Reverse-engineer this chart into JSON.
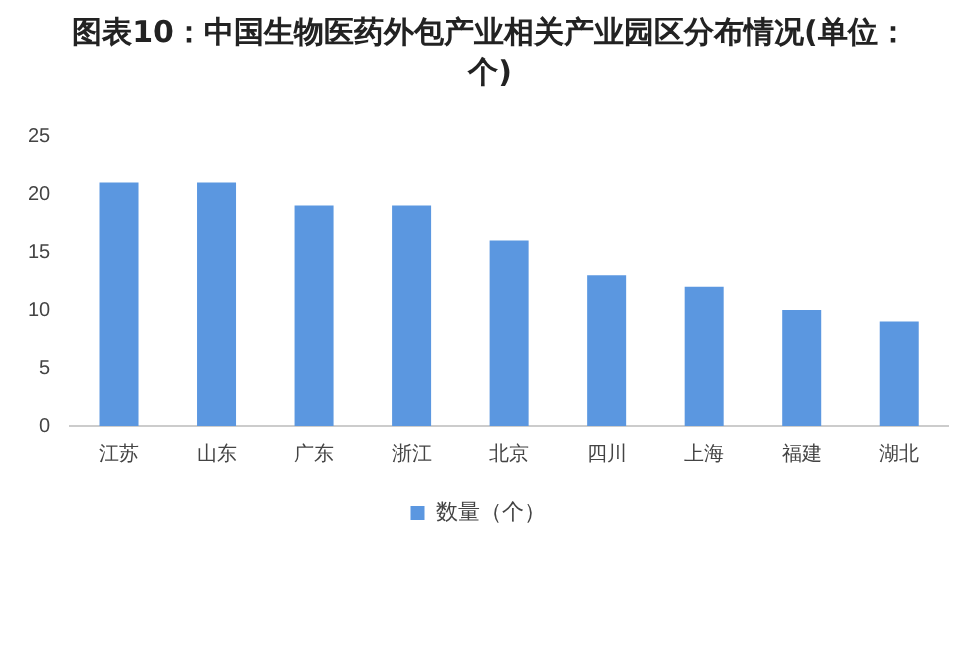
{
  "chart_data": {
    "type": "bar",
    "title": "图表10：中国生物医药外包产业相关产业园区分布情况(单位：个)",
    "categories": [
      "江苏",
      "山东",
      "广东",
      "浙江",
      "北京",
      "四川",
      "上海",
      "福建",
      "湖北"
    ],
    "series": [
      {
        "name": "数量（个）",
        "color": "#5b97e0",
        "values": [
          21,
          21,
          19,
          19,
          16,
          13,
          12,
          10,
          9
        ]
      }
    ],
    "ylim": [
      0,
      25
    ],
    "yticks": [
      0,
      5,
      10,
      15,
      20,
      25
    ],
    "grid": false,
    "legend": "bottom"
  }
}
